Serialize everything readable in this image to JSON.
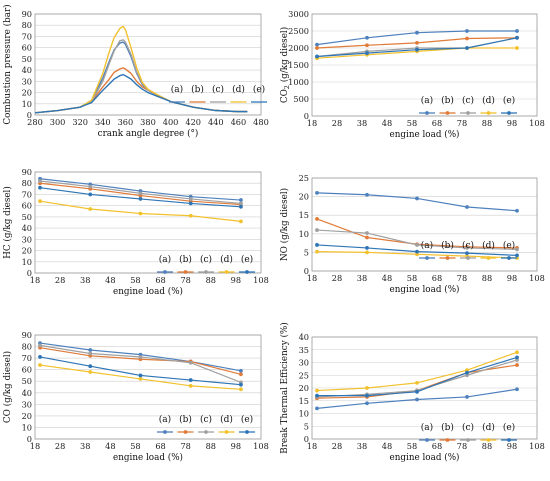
{
  "colors": {
    "a": "#4f81bd",
    "b": "#e07b39",
    "c": "#a0a0a0",
    "d": "#f2c12e",
    "e": "#2e75b6"
  },
  "legend": [
    "(a)",
    "(b)",
    "(c)",
    "(d)",
    "(e)"
  ],
  "chart_data": [
    {
      "type": "line",
      "id": "p1",
      "title": "",
      "xlabel": "crank angle degree (°)",
      "ylabel": "Combustion pressure (bar)",
      "xlim": [
        280,
        480
      ],
      "ylim": [
        0,
        90
      ],
      "xticks": [
        280,
        300,
        320,
        340,
        360,
        380,
        400,
        420,
        440,
        460,
        480
      ],
      "yticks": [
        0,
        10,
        20,
        30,
        40,
        50,
        60,
        70,
        80,
        90
      ],
      "grid": true,
      "legend_position": "right",
      "markers": false,
      "series": [
        {
          "key": "a",
          "x": [
            280,
            300,
            320,
            330,
            340,
            345,
            350,
            355,
            358,
            360,
            365,
            370,
            375,
            380,
            390,
            400,
            420,
            440,
            460,
            468
          ],
          "y": [
            2,
            4,
            7,
            13,
            33,
            46,
            58,
            64,
            65,
            63,
            52,
            37,
            27,
            22,
            17,
            12,
            7,
            4,
            3,
            3
          ]
        },
        {
          "key": "b",
          "x": [
            280,
            300,
            320,
            330,
            340,
            345,
            350,
            355,
            358,
            360,
            365,
            370,
            375,
            380,
            390,
            400,
            420,
            440,
            460,
            468
          ],
          "y": [
            2,
            4,
            7,
            12,
            25,
            31,
            38,
            41,
            42,
            41,
            37,
            30,
            25,
            22,
            17,
            12,
            7,
            4,
            3,
            3
          ]
        },
        {
          "key": "c",
          "x": [
            280,
            300,
            320,
            330,
            340,
            345,
            350,
            355,
            358,
            360,
            365,
            370,
            375,
            380,
            390,
            400,
            420,
            440,
            460,
            468
          ],
          "y": [
            2,
            4,
            7,
            12,
            30,
            44,
            57,
            66,
            67,
            65,
            54,
            38,
            28,
            22,
            17,
            12,
            7,
            4,
            3,
            3
          ]
        },
        {
          "key": "d",
          "x": [
            280,
            300,
            320,
            330,
            340,
            345,
            350,
            355,
            358,
            360,
            365,
            370,
            375,
            380,
            390,
            400,
            420,
            440,
            460,
            468
          ],
          "y": [
            2,
            4,
            7,
            13,
            37,
            54,
            69,
            77,
            79,
            76,
            60,
            42,
            29,
            23,
            17,
            12,
            7,
            4,
            3,
            3
          ]
        },
        {
          "key": "e",
          "x": [
            280,
            300,
            320,
            330,
            340,
            345,
            350,
            355,
            358,
            360,
            365,
            370,
            375,
            380,
            390,
            400,
            420,
            440,
            460,
            468
          ],
          "y": [
            2,
            4,
            7,
            11,
            22,
            27,
            32,
            35,
            36,
            35,
            32,
            27,
            23,
            20,
            16,
            12,
            7,
            4,
            3,
            3
          ]
        }
      ]
    },
    {
      "type": "line",
      "id": "p2",
      "title": "",
      "xlabel": "engine load (%)",
      "ylabel": "CO2 (g/kg diesel)",
      "xlim": [
        18,
        108
      ],
      "ylim": [
        0,
        3000
      ],
      "xticks": [
        18,
        28,
        38,
        48,
        58,
        68,
        78,
        88,
        98,
        108
      ],
      "yticks": [
        0,
        500,
        1000,
        1500,
        2000,
        2500,
        3000
      ],
      "grid": true,
      "legend_position": "bottom-right",
      "markers": true,
      "series": [
        {
          "key": "a",
          "x": [
            20,
            40,
            60,
            80,
            100
          ],
          "y": [
            2100,
            2300,
            2450,
            2500,
            2500
          ]
        },
        {
          "key": "b",
          "x": [
            20,
            40,
            60,
            80,
            100
          ],
          "y": [
            2000,
            2080,
            2150,
            2280,
            2300
          ]
        },
        {
          "key": "c",
          "x": [
            20,
            40,
            60,
            80,
            100
          ],
          "y": [
            1750,
            1900,
            2000,
            2000,
            2300
          ]
        },
        {
          "key": "d",
          "x": [
            20,
            40,
            60,
            80,
            100
          ],
          "y": [
            1700,
            1800,
            1900,
            2000,
            2000
          ]
        },
        {
          "key": "e",
          "x": [
            20,
            40,
            60,
            80,
            100
          ],
          "y": [
            1750,
            1850,
            1950,
            2000,
            2300
          ]
        }
      ]
    },
    {
      "type": "line",
      "id": "p3",
      "title": "",
      "xlabel": "engine load (%)",
      "ylabel": "HC (g/kg diesel)",
      "xlim": [
        18,
        108
      ],
      "ylim": [
        0,
        90
      ],
      "xticks": [
        18,
        28,
        38,
        48,
        58,
        68,
        78,
        88,
        98,
        108
      ],
      "yticks": [
        0,
        10,
        20,
        30,
        40,
        50,
        60,
        70,
        80,
        90
      ],
      "grid": true,
      "legend_position": "bottom-right",
      "markers": true,
      "series": [
        {
          "key": "a",
          "x": [
            20,
            40,
            60,
            80,
            100
          ],
          "y": [
            84,
            79,
            73,
            68,
            65
          ]
        },
        {
          "key": "b",
          "x": [
            20,
            40,
            60,
            80,
            100
          ],
          "y": [
            80,
            75,
            69,
            64,
            61
          ]
        },
        {
          "key": "c",
          "x": [
            20,
            40,
            60,
            80,
            100
          ],
          "y": [
            82,
            77,
            71,
            66,
            62
          ]
        },
        {
          "key": "d",
          "x": [
            20,
            40,
            60,
            80,
            100
          ],
          "y": [
            64,
            57,
            53,
            51,
            46
          ]
        },
        {
          "key": "e",
          "x": [
            20,
            40,
            60,
            80,
            100
          ],
          "y": [
            76,
            70,
            66,
            62,
            59
          ]
        }
      ]
    },
    {
      "type": "line",
      "id": "p4",
      "title": "",
      "xlabel": "engine load (%)",
      "ylabel": "NO (g/kg diesel)",
      "xlim": [
        18,
        108
      ],
      "ylim": [
        0,
        25
      ],
      "xticks": [
        18,
        28,
        38,
        48,
        58,
        68,
        78,
        88,
        98,
        108
      ],
      "yticks": [
        0,
        5,
        10,
        15,
        20,
        25
      ],
      "grid": true,
      "legend_position": "right",
      "markers": true,
      "series": [
        {
          "key": "a",
          "x": [
            20,
            40,
            60,
            80,
            100
          ],
          "y": [
            21,
            20.5,
            19.5,
            17.2,
            16.2
          ]
        },
        {
          "key": "b",
          "x": [
            20,
            40,
            60,
            80,
            100
          ],
          "y": [
            14,
            9,
            7.2,
            6.5,
            6.2
          ]
        },
        {
          "key": "c",
          "x": [
            20,
            40,
            60,
            80,
            100
          ],
          "y": [
            11,
            10.2,
            7,
            6.2,
            5.8
          ]
        },
        {
          "key": "d",
          "x": [
            20,
            40,
            60,
            80,
            100
          ],
          "y": [
            5.2,
            5,
            4.5,
            4,
            3.5
          ]
        },
        {
          "key": "e",
          "x": [
            20,
            40,
            60,
            80,
            100
          ],
          "y": [
            7,
            6.2,
            5.2,
            4.8,
            4.2
          ]
        }
      ]
    },
    {
      "type": "line",
      "id": "p5",
      "title": "",
      "xlabel": "engine load (%)",
      "ylabel": "CO (g/kg diesel)",
      "xlim": [
        18,
        108
      ],
      "ylim": [
        0,
        90
      ],
      "xticks": [
        18,
        28,
        38,
        48,
        58,
        68,
        78,
        88,
        98,
        108
      ],
      "yticks": [
        0,
        10,
        20,
        30,
        40,
        50,
        60,
        70,
        80,
        90
      ],
      "grid": true,
      "legend_position": "bottom-right",
      "markers": true,
      "series": [
        {
          "key": "a",
          "x": [
            20,
            40,
            60,
            80,
            100
          ],
          "y": [
            83,
            77,
            73,
            67,
            59
          ]
        },
        {
          "key": "b",
          "x": [
            20,
            40,
            60,
            80,
            100
          ],
          "y": [
            79,
            72,
            69,
            67,
            56
          ]
        },
        {
          "key": "c",
          "x": [
            20,
            40,
            60,
            80,
            100
          ],
          "y": [
            81,
            74,
            71,
            66,
            49
          ]
        },
        {
          "key": "d",
          "x": [
            20,
            40,
            60,
            80,
            100
          ],
          "y": [
            64,
            58,
            52,
            46,
            43
          ]
        },
        {
          "key": "e",
          "x": [
            20,
            40,
            60,
            80,
            100
          ],
          "y": [
            71,
            63,
            55,
            51,
            47
          ]
        }
      ]
    },
    {
      "type": "line",
      "id": "p6",
      "title": "",
      "xlabel": "engine load (%)",
      "ylabel": "Break Thermal Efficiency (%)",
      "xlim": [
        18,
        108
      ],
      "ylim": [
        0,
        40
      ],
      "xticks": [
        18,
        28,
        38,
        48,
        58,
        68,
        78,
        88,
        98,
        108
      ],
      "yticks": [
        0,
        5,
        10,
        15,
        20,
        25,
        30,
        35,
        40
      ],
      "grid": true,
      "legend_position": "bottom-right",
      "markers": true,
      "series": [
        {
          "key": "a",
          "x": [
            20,
            40,
            60,
            80,
            100
          ],
          "y": [
            12,
            14,
            15.5,
            16.5,
            19.5
          ]
        },
        {
          "key": "b",
          "x": [
            20,
            40,
            60,
            80,
            100
          ],
          "y": [
            16,
            16.5,
            19,
            26,
            29
          ]
        },
        {
          "key": "c",
          "x": [
            20,
            40,
            60,
            80,
            100
          ],
          "y": [
            16.5,
            17.5,
            19,
            25,
            31
          ]
        },
        {
          "key": "d",
          "x": [
            20,
            40,
            60,
            80,
            100
          ],
          "y": [
            19,
            20,
            22,
            27,
            34
          ]
        },
        {
          "key": "e",
          "x": [
            20,
            40,
            60,
            80,
            100
          ],
          "y": [
            17,
            17,
            18.5,
            26,
            32
          ]
        }
      ]
    }
  ]
}
